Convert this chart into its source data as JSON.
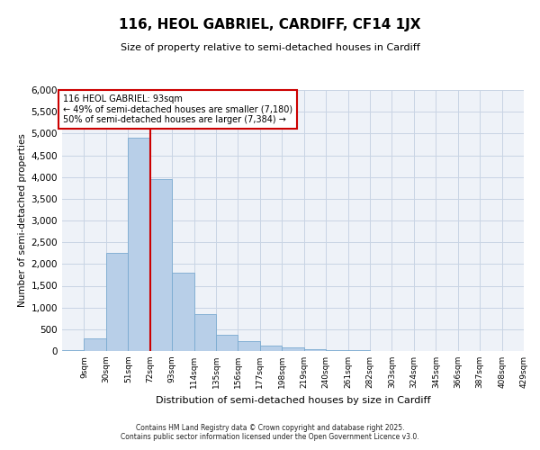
{
  "title": "116, HEOL GABRIEL, CARDIFF, CF14 1JX",
  "subtitle": "Size of property relative to semi-detached houses in Cardiff",
  "xlabel": "Distribution of semi-detached houses by size in Cardiff",
  "ylabel": "Number of semi-detached properties",
  "annotation_title": "116 HEOL GABRIEL: 93sqm",
  "annotation_line1": "← 49% of semi-detached houses are smaller (7,180)",
  "annotation_line2": "50% of semi-detached houses are larger (7,384) →",
  "footer1": "Contains HM Land Registry data © Crown copyright and database right 2025.",
  "footer2": "Contains public sector information licensed under the Open Government Licence v3.0.",
  "property_size_sqm": 93,
  "bar_color": "#b8cfe8",
  "bar_edge_color": "#7aaad0",
  "vline_color": "#cc0000",
  "annotation_box_edge_color": "#cc0000",
  "grid_color": "#c8d4e4",
  "background_color": "#eef2f8",
  "categories": [
    "9sqm",
    "30sqm",
    "51sqm",
    "72sqm",
    "93sqm",
    "114sqm",
    "135sqm",
    "156sqm",
    "177sqm",
    "198sqm",
    "219sqm",
    "240sqm",
    "261sqm",
    "282sqm",
    "303sqm",
    "324sqm",
    "345sqm",
    "366sqm",
    "387sqm",
    "408sqm",
    "429sqm"
  ],
  "bin_left_edges": [
    9,
    30,
    51,
    72,
    93,
    114,
    135,
    156,
    177,
    198,
    219,
    240,
    261,
    282,
    303,
    324,
    345,
    366,
    387,
    408,
    429
  ],
  "bin_width": 21,
  "values": [
    30,
    290,
    2250,
    4900,
    3950,
    1800,
    850,
    380,
    220,
    120,
    90,
    50,
    20,
    12,
    5,
    3,
    2,
    1,
    0,
    0,
    0
  ],
  "ylim": [
    0,
    6000
  ],
  "ytick_step": 500
}
